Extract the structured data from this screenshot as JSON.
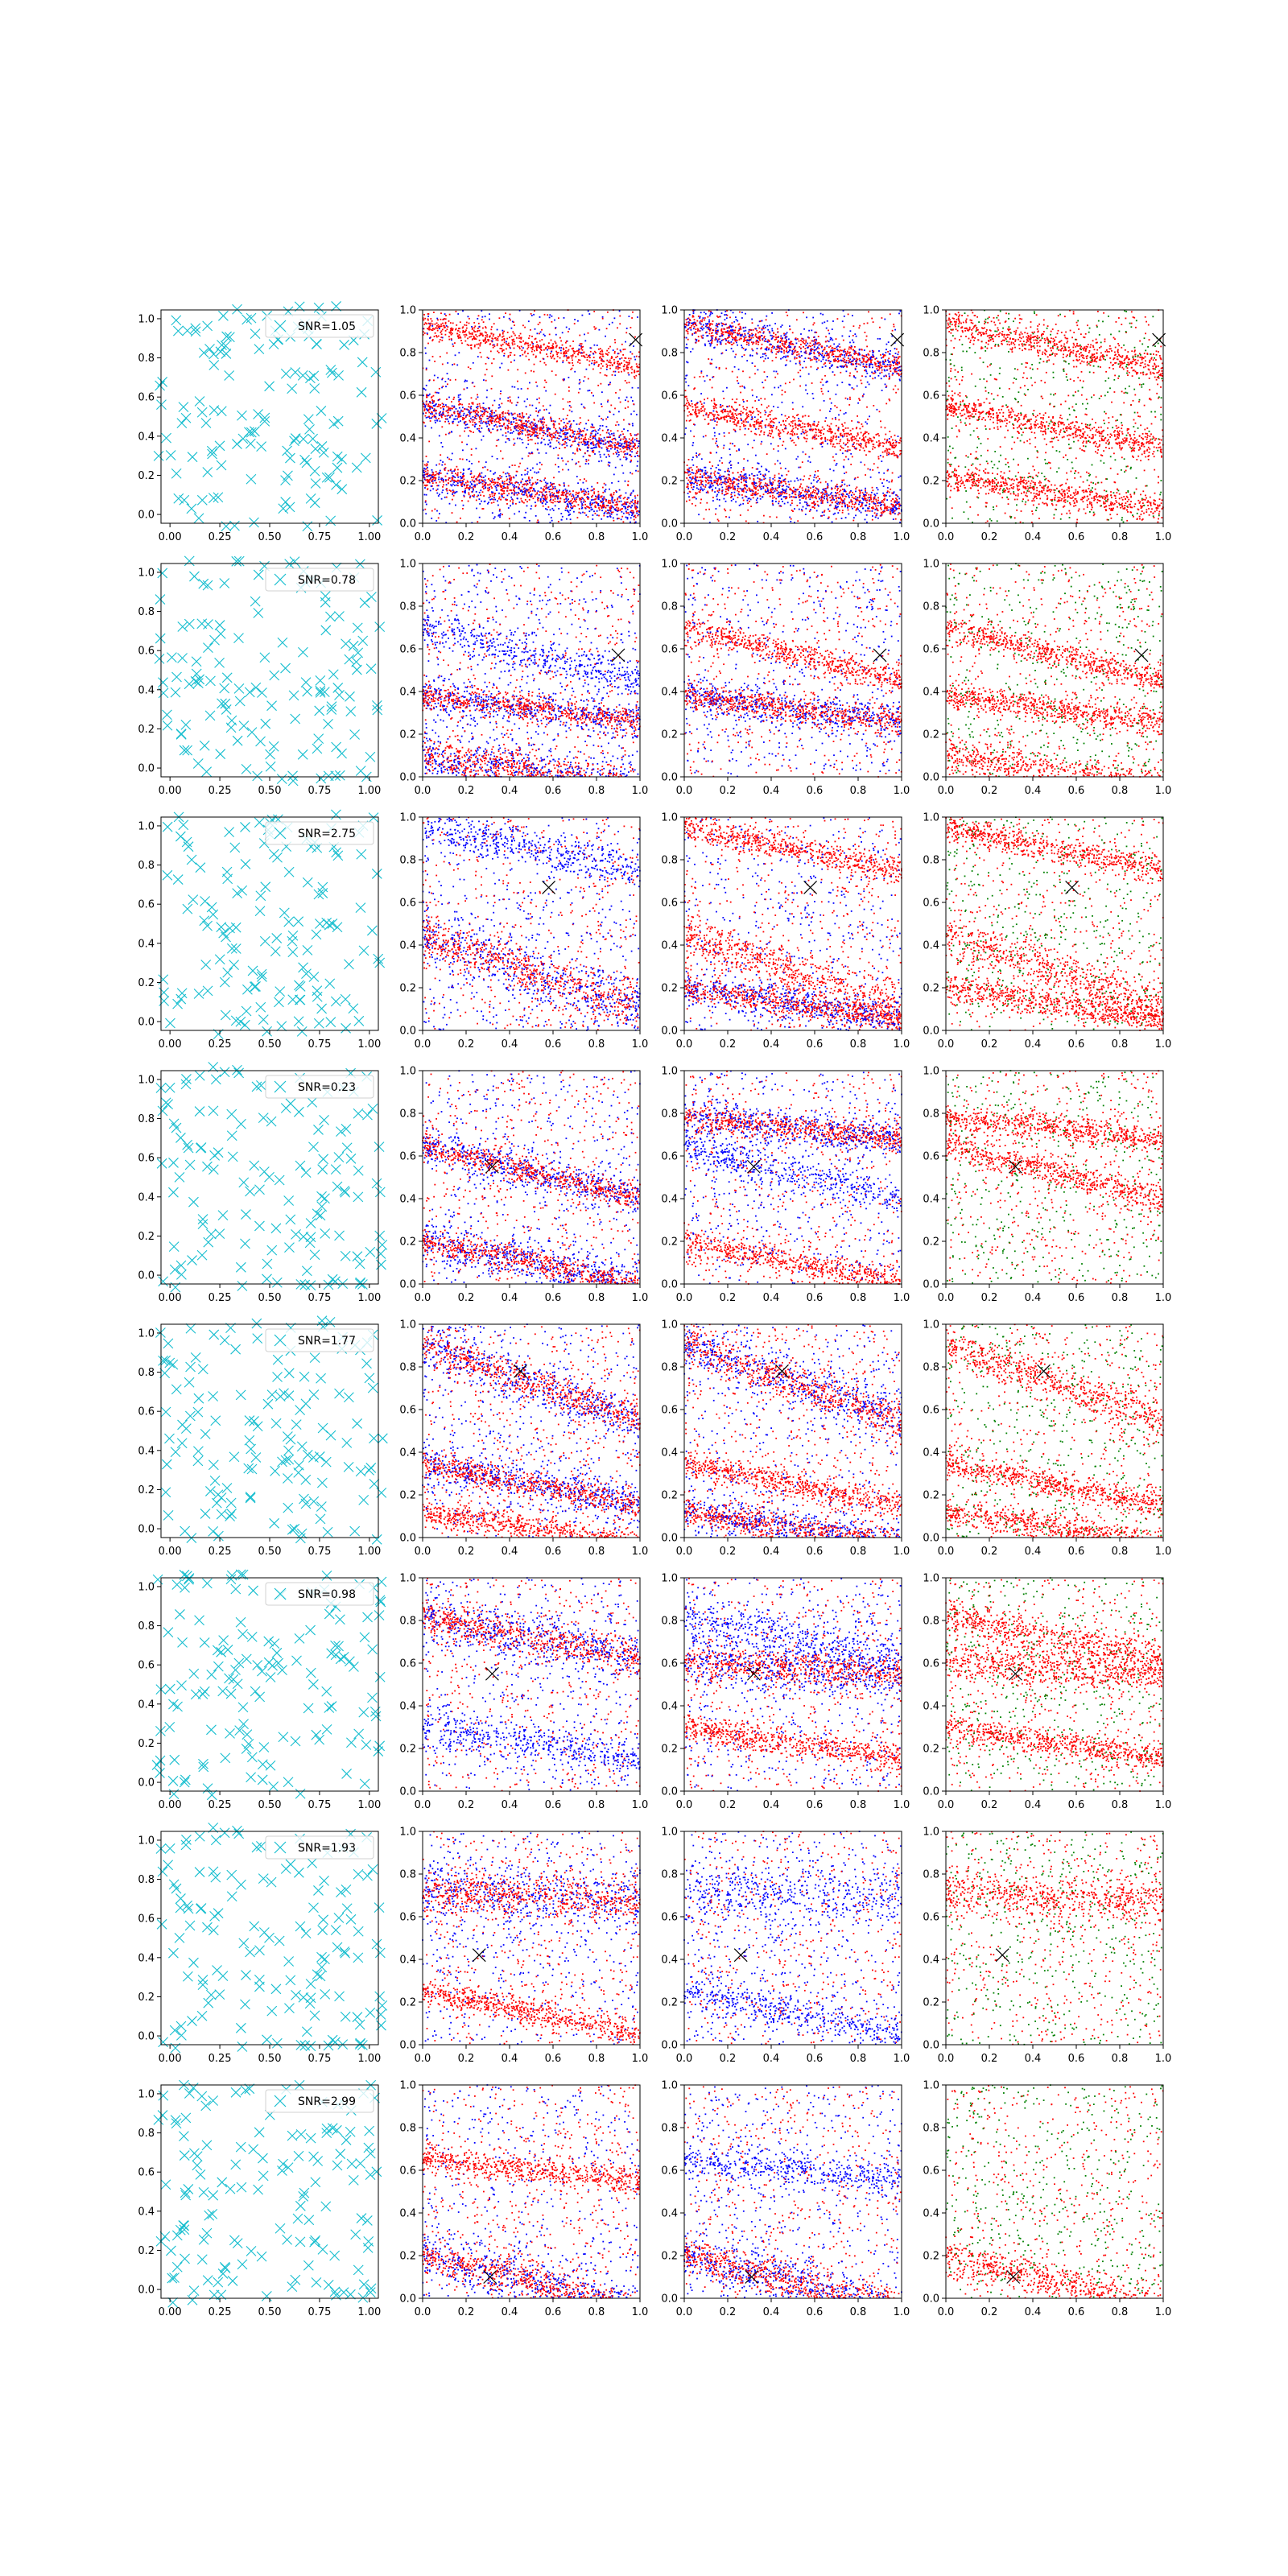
{
  "chart_data": {
    "type": "scatter",
    "layout": "8 rows x 4 columns of square scatter panels",
    "xlim": [
      0,
      1
    ],
    "ylim": [
      0,
      1
    ],
    "grid": false,
    "axis_tick_labels": {
      "col1_x": [
        "0.00",
        "0.25",
        "0.50",
        "0.75",
        "1.00"
      ],
      "col1_y": [
        "0.0",
        "0.2",
        "0.4",
        "0.6",
        "0.8",
        "1.0"
      ],
      "cols234_x": [
        "0.0",
        "0.2",
        "0.4",
        "0.6",
        "0.8",
        "1.0"
      ],
      "cols234_y": [
        "0.0",
        "0.2",
        "0.4",
        "0.6",
        "0.8",
        "1.0"
      ]
    },
    "colors": {
      "cyan_marker": "#17becf",
      "red_points": "#ff0000",
      "blue_points": "#0000ff",
      "green_points": "#008000",
      "marker_x": "#000000",
      "frame": "#000000"
    },
    "column_descriptions": [
      "cyan x-marker scatter of random points (legend shows SNR)",
      "red + blue point cloud with one black x marker",
      "red + blue point cloud with one black x marker",
      "red + green point cloud with one black x marker"
    ],
    "legend_placement": "upper right of column 1 panels",
    "rows": [
      {
        "legend": "SNR=1.05",
        "marker": [
          0.98,
          0.86
        ],
        "bands": [
          {
            "y0": 0.93,
            "slope": -0.2,
            "w": 0.03,
            "col_red": [
              1,
              2,
              3
            ],
            "col_blue": [
              2
            ]
          },
          {
            "y0": 0.55,
            "slope": -0.2,
            "w": 0.03,
            "col_red": [
              1,
              2,
              3
            ],
            "col_blue": [
              1
            ]
          },
          {
            "y0": 0.22,
            "slope": -0.15,
            "w": 0.03,
            "col_red": [
              1,
              2,
              3
            ],
            "col_blue": [
              1,
              2
            ]
          }
        ]
      },
      {
        "legend": "SNR=0.78",
        "marker": [
          0.9,
          0.57
        ],
        "bands": [
          {
            "y0": 0.38,
            "slope": -0.12,
            "w": 0.03,
            "col_red": [
              1,
              2,
              3
            ],
            "col_blue": [
              1,
              2
            ]
          },
          {
            "y0": 0.1,
            "slope": -0.15,
            "w": 0.04,
            "col_red": [
              1,
              3
            ],
            "col_blue": [
              1
            ]
          },
          {
            "y0": 0.7,
            "slope": -0.25,
            "w": 0.03,
            "col_red": [
              2,
              3
            ],
            "col_blue": [
              1
            ]
          }
        ]
      },
      {
        "legend": "SNR=2.75",
        "marker": [
          0.58,
          0.67
        ],
        "bands": [
          {
            "y0": 0.95,
            "slope": -0.2,
            "w": 0.03,
            "col_red": [
              2,
              3
            ],
            "col_blue": [
              1
            ]
          },
          {
            "y0": 0.45,
            "slope": -0.35,
            "w": 0.05,
            "col_red": [
              1,
              2,
              3
            ],
            "col_blue": [
              1
            ]
          },
          {
            "y0": 0.2,
            "slope": -0.15,
            "w": 0.03,
            "col_red": [
              2,
              3
            ],
            "col_blue": [
              2
            ]
          }
        ]
      },
      {
        "legend": "SNR=0.23",
        "marker": [
          0.32,
          0.55
        ],
        "bands": [
          {
            "y0": 0.78,
            "slope": -0.1,
            "w": 0.03,
            "col_red": [
              2,
              3
            ],
            "col_blue": [
              2
            ]
          },
          {
            "y0": 0.65,
            "slope": -0.25,
            "w": 0.03,
            "col_red": [
              1,
              3
            ],
            "col_blue": [
              1,
              2
            ]
          },
          {
            "y0": 0.2,
            "slope": -0.2,
            "w": 0.03,
            "col_red": [
              1,
              2
            ],
            "col_blue": [
              1
            ]
          }
        ]
      },
      {
        "legend": "SNR=1.77",
        "marker": [
          0.45,
          0.78
        ],
        "bands": [
          {
            "y0": 0.9,
            "slope": -0.35,
            "w": 0.04,
            "col_red": [
              1,
              2,
              3
            ],
            "col_blue": [
              1,
              2
            ]
          },
          {
            "y0": 0.35,
            "slope": -0.2,
            "w": 0.03,
            "col_red": [
              1,
              2,
              3
            ],
            "col_blue": [
              1
            ]
          },
          {
            "y0": 0.12,
            "slope": -0.15,
            "w": 0.03,
            "col_red": [
              1,
              2,
              3
            ],
            "col_blue": [
              2
            ]
          }
        ]
      },
      {
        "legend": "SNR=0.98",
        "marker": [
          0.32,
          0.55
        ],
        "bands": [
          {
            "y0": 0.82,
            "slope": -0.2,
            "w": 0.04,
            "col_red": [
              1,
              3
            ],
            "col_blue": [
              1,
              2
            ]
          },
          {
            "y0": 0.3,
            "slope": -0.15,
            "w": 0.03,
            "col_red": [
              2,
              3
            ],
            "col_blue": [
              1
            ]
          },
          {
            "y0": 0.6,
            "slope": -0.05,
            "w": 0.04,
            "col_red": [
              2,
              3
            ],
            "col_blue": [
              2
            ]
          }
        ]
      },
      {
        "legend": "SNR=1.93",
        "marker": [
          0.26,
          0.42
        ],
        "bands": [
          {
            "y0": 0.72,
            "slope": -0.05,
            "w": 0.05,
            "col_red": [
              1,
              3
            ],
            "col_blue": [
              1,
              2
            ]
          },
          {
            "y0": 0.25,
            "slope": -0.2,
            "w": 0.03,
            "col_red": [
              1
            ],
            "col_blue": [
              2
            ]
          }
        ]
      },
      {
        "legend": "SNR=2.99",
        "marker": [
          0.31,
          0.1
        ],
        "bands": [
          {
            "y0": 0.2,
            "slope": -0.25,
            "w": 0.04,
            "col_red": [
              1,
              2,
              3
            ],
            "col_blue": [
              1,
              2
            ]
          },
          {
            "y0": 0.65,
            "slope": -0.1,
            "w": 0.03,
            "col_red": [
              1
            ],
            "col_blue": [
              2
            ]
          }
        ]
      }
    ]
  }
}
